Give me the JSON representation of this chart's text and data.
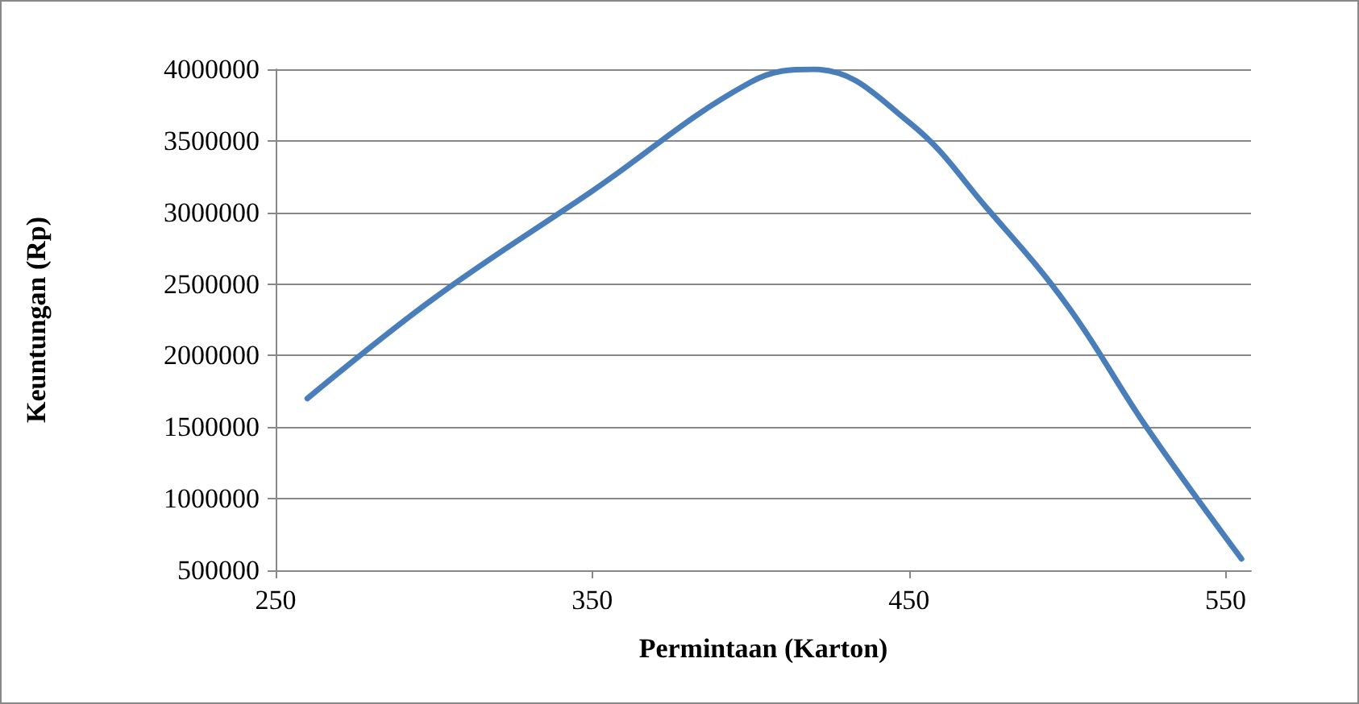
{
  "chart_data": {
    "type": "line",
    "xlabel": "Permintaan (Karton)",
    "ylabel": "Keuntungan (Rp)",
    "x": [
      260,
      300,
      350,
      400,
      420,
      450,
      475,
      500,
      525,
      555
    ],
    "series": [
      {
        "color": "#4a7ebb",
        "values": [
          1700000,
          2400000,
          3150000,
          3910000,
          4000000,
          3630000,
          3020000,
          2350000,
          1500000,
          580000
        ]
      }
    ],
    "xlim": [
      250,
      558
    ],
    "xticks": [
      250,
      350,
      450,
      550
    ],
    "ylim": [
      500000,
      4000000
    ],
    "yticks": [
      500000,
      1000000,
      1500000,
      2000000,
      2500000,
      3000000,
      3500000,
      4000000
    ],
    "grid": "y",
    "marker": "none",
    "line_style": "solid"
  }
}
